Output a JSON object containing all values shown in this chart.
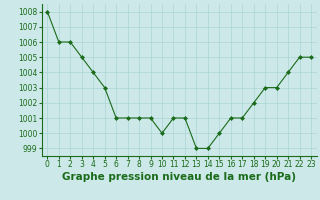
{
  "x": [
    0,
    1,
    2,
    3,
    4,
    5,
    6,
    7,
    8,
    9,
    10,
    11,
    12,
    13,
    14,
    15,
    16,
    17,
    18,
    19,
    20,
    21,
    22,
    23
  ],
  "y": [
    1008,
    1006,
    1006,
    1005,
    1004,
    1003,
    1001,
    1001,
    1001,
    1001,
    1000,
    1001,
    1001,
    999,
    999,
    1000,
    1001,
    1001,
    1002,
    1003,
    1003,
    1004,
    1005,
    1005
  ],
  "line_color": "#1a6b1a",
  "marker_color": "#1a6b1a",
  "bg_color": "#cce8e8",
  "grid_color": "#aad4d4",
  "xlabel": "Graphe pression niveau de la mer (hPa)",
  "xlabel_fontsize": 7.5,
  "ylim_min": 998.5,
  "ylim_max": 1008.5,
  "xlim_min": -0.5,
  "xlim_max": 23.5,
  "yticks": [
    999,
    1000,
    1001,
    1002,
    1003,
    1004,
    1005,
    1006,
    1007,
    1008
  ],
  "xticks": [
    0,
    1,
    2,
    3,
    4,
    5,
    6,
    7,
    8,
    9,
    10,
    11,
    12,
    13,
    14,
    15,
    16,
    17,
    18,
    19,
    20,
    21,
    22,
    23
  ],
  "tick_fontsize": 5.5,
  "label_color": "#1a6b1a"
}
